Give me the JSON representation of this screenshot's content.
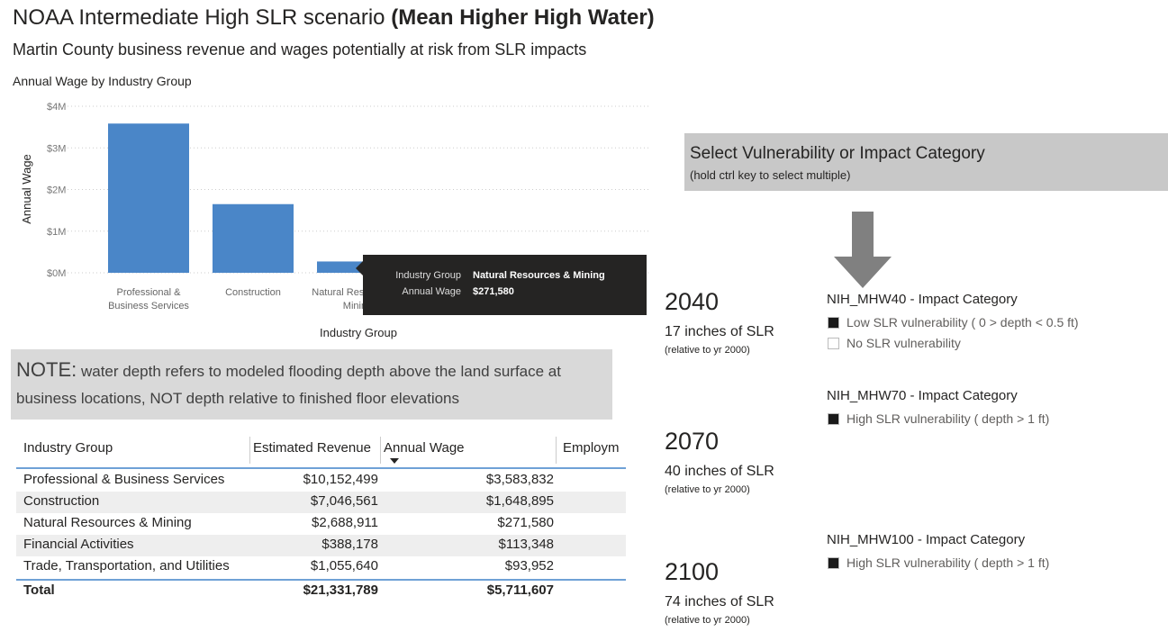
{
  "header": {
    "title": "NOAA Intermediate High SLR scenario",
    "title_bold": "(Mean Higher High Water)",
    "subtitle": "Martin County business revenue and wages potentially at risk from SLR impacts"
  },
  "chart_data": {
    "type": "bar",
    "title": "Annual Wage by Industry Group",
    "x_label": "Industry Group",
    "y_label": "Annual Wage",
    "categories": [
      "Professional & Business Services",
      "Construction",
      "Natural Resources & Mining",
      "Financial Activities",
      "Trade, Transportation, and Utilities"
    ],
    "values": [
      3583832,
      1648895,
      271580,
      113348,
      93952
    ],
    "color": "#4a86c8",
    "ylim": [
      0,
      4000000
    ],
    "yticks": [
      {
        "value": 0,
        "label": "$0M"
      },
      {
        "value": 1000000,
        "label": "$1M"
      },
      {
        "value": 2000000,
        "label": "$2M"
      },
      {
        "value": 3000000,
        "label": "$3M"
      },
      {
        "value": 4000000,
        "label": "$4M"
      }
    ],
    "grid": true,
    "tooltip": {
      "rows": [
        [
          "Industry Group",
          "Natural Resources & Mining"
        ],
        [
          "Annual Wage",
          "$271,580"
        ]
      ]
    }
  },
  "note": {
    "lead": "NOTE:",
    "text": "water depth refers to modeled flooding depth above the land surface at business locations, NOT depth relative to finished floor elevations"
  },
  "table": {
    "columns": [
      "Industry Group",
      "Estimated Revenue",
      "Annual Wage",
      "Employm"
    ],
    "rows": [
      [
        "Professional & Business Services",
        "$10,152,499",
        "$3,583,832"
      ],
      [
        "Construction",
        "$7,046,561",
        "$1,648,895"
      ],
      [
        "Natural Resources & Mining",
        "$2,688,911",
        "$271,580"
      ],
      [
        "Financial Activities",
        "$388,178",
        "$113,348"
      ],
      [
        "Trade, Transportation, and Utilities",
        "$1,055,640",
        "$93,952"
      ]
    ],
    "total": [
      "Total",
      "$21,331,789",
      "$5,711,607"
    ]
  },
  "slicer": {
    "title": "Select Vulnerability or Impact Category",
    "hint": "(hold ctrl key to select multiple)"
  },
  "scenarios": [
    {
      "year": "2040",
      "inches": "17 inches of SLR",
      "ref": "(relative to yr 2000)"
    },
    {
      "year": "2070",
      "inches": "40 inches of SLR",
      "ref": "(relative to yr 2000)"
    },
    {
      "year": "2100",
      "inches": "74 inches of SLR",
      "ref": "(relative to yr 2000)"
    }
  ],
  "legends": [
    {
      "title": "NIH_MHW40 - Impact Category",
      "items": [
        {
          "label": "Low SLR vulnerability ( 0 > depth < 0.5 ft)",
          "color": "#1a1a1a"
        },
        {
          "label": "No SLR vulnerability",
          "color": "#ffffff"
        }
      ]
    },
    {
      "title": "NIH_MHW70 - Impact Category",
      "items": [
        {
          "label": "High SLR vulnerability ( depth > 1 ft)",
          "color": "#1a1a1a"
        }
      ]
    },
    {
      "title": "NIH_MHW100 - Impact Category",
      "items": [
        {
          "label": "High SLR vulnerability ( depth > 1 ft)",
          "color": "#1a1a1a"
        }
      ]
    }
  ]
}
